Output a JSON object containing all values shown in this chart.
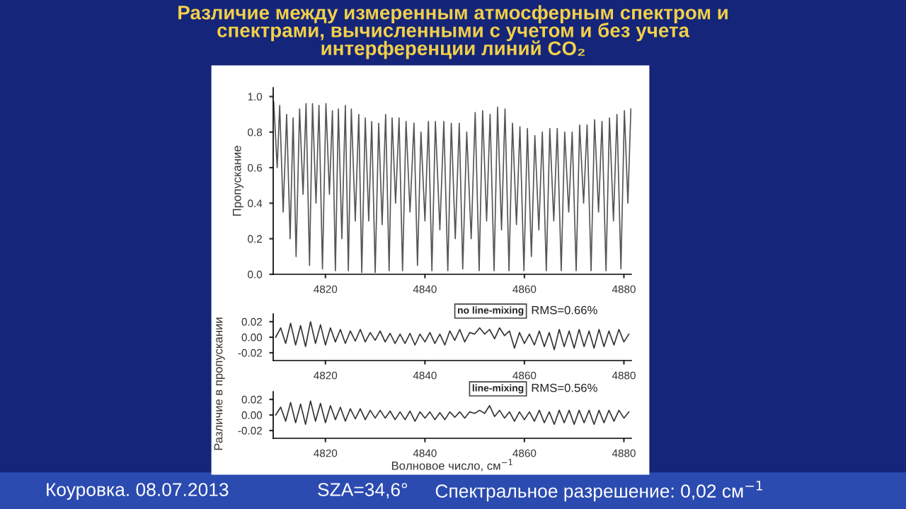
{
  "chart_data": [
    {
      "type": "line",
      "title": "Различие между измеренным атмосферным спектром и\nспектрами, вычисленными с учетом и без учета\nинтерференции линий CO₂",
      "ylabel": "Пропускание",
      "annotations": [
        "Коуровка. 08.07.2013",
        "SZA=34,6°",
        "Спектральное разрешение: 0,02 см$^{−1}$"
      ],
      "xlim": [
        4809.5,
        4881.5
      ],
      "xticks": [
        4820,
        4840,
        4860,
        4880
      ],
      "ylim": [
        0,
        1.05
      ],
      "yticks": [
        {
          "value": 0,
          "label": "0.0"
        },
        {
          "value": 0.2,
          "label": "0.2"
        },
        {
          "value": 0.4,
          "label": "0.4"
        },
        {
          "value": 0.6,
          "label": "0.6"
        },
        {
          "value": 0.8,
          "label": "0.8"
        },
        {
          "value": 1.0,
          "label": "1.0"
        }
      ],
      "grid": false,
      "marker": "none",
      "line_style": "solid",
      "series": [
        {
          "color": "#555555",
          "x": [
            4809.6,
            4810.3,
            4810.8,
            4811.5,
            4812.2,
            4812.9,
            4813.5,
            4814.1,
            4814.8,
            4815.5,
            4816.1,
            4816.8,
            4817.4,
            4818.1,
            4818.7,
            4819.4,
            4820.1,
            4820.8,
            4821.4,
            4822.0,
            4822.6,
            4823.3,
            4824.0,
            4824.6,
            4825.2,
            4826.0,
            4826.7,
            4827.3,
            4828.0,
            4828.7,
            4829.3,
            4830.0,
            4830.7,
            4831.4,
            4832.1,
            4832.8,
            4833.4,
            4834.1,
            4834.8,
            4835.5,
            4836.2,
            4837.0,
            4837.8,
            4838.5,
            4839.2,
            4840.0,
            4840.7,
            4841.4,
            4842.1,
            4843.0,
            4843.8,
            4844.6,
            4845.3,
            4846.1,
            4846.9,
            4847.6,
            4848.4,
            4849.3,
            4850.1,
            4850.9,
            4851.6,
            4852.4,
            4853.1,
            4853.9,
            4854.6,
            4855.4,
            4856.1,
            4856.9,
            4857.6,
            4858.4,
            4859.1,
            4859.9,
            4860.6,
            4861.4,
            4862.1,
            4862.9,
            4863.6,
            4864.4,
            4865.1,
            4865.9,
            4866.6,
            4867.4,
            4868.1,
            4868.9,
            4869.6,
            4870.4,
            4871.1,
            4871.9,
            4872.6,
            4873.4,
            4874.1,
            4874.9,
            4875.6,
            4876.4,
            4877.1,
            4877.9,
            4878.6,
            4879.4,
            4880.1,
            4880.8,
            4881.4
          ],
          "values": [
            0.97,
            0.6,
            0.95,
            0.35,
            0.9,
            0.2,
            0.88,
            0.1,
            0.93,
            0.45,
            0.96,
            0.05,
            0.96,
            0.4,
            0.95,
            0.03,
            0.96,
            0.45,
            0.92,
            0.02,
            0.93,
            0.2,
            0.95,
            0.02,
            0.93,
            0.3,
            0.9,
            0.01,
            0.88,
            0.3,
            0.86,
            0.01,
            0.85,
            0.28,
            0.9,
            0.02,
            0.88,
            0.4,
            0.88,
            0.02,
            0.86,
            0.35,
            0.85,
            0.05,
            0.8,
            0.3,
            0.86,
            0.02,
            0.86,
            0.25,
            0.86,
            0.02,
            0.85,
            0.2,
            0.85,
            0.03,
            0.8,
            0.2,
            0.91,
            0.02,
            0.92,
            0.3,
            0.9,
            0.02,
            0.94,
            0.25,
            0.93,
            0.02,
            0.85,
            0.28,
            0.83,
            0.02,
            0.82,
            0.1,
            0.78,
            0.25,
            0.8,
            0.02,
            0.82,
            0.3,
            0.82,
            0.02,
            0.8,
            0.35,
            0.8,
            0.02,
            0.84,
            0.4,
            0.84,
            0.02,
            0.87,
            0.35,
            0.86,
            0.02,
            0.88,
            0.3,
            0.9,
            0.03,
            0.92,
            0.4,
            0.93
          ]
        }
      ]
    },
    {
      "type": "line",
      "ylabel": "Различие в пропускании",
      "annotations": [
        "no line-mixing",
        "RMS=0.66%"
      ],
      "xlim": [
        4809.5,
        4881.5
      ],
      "xticks": [
        4820,
        4840,
        4860,
        4880
      ],
      "ylim": [
        -0.03,
        0.03
      ],
      "yticks": [
        {
          "value": 0.02,
          "label": "0.02"
        },
        {
          "value": 0,
          "label": "0.00"
        },
        {
          "value": -0.02,
          "label": "-0.02"
        }
      ],
      "grid": false,
      "marker": "none",
      "line_style": "solid",
      "series": [
        {
          "color": "#333333",
          "x": [
            4810,
            4811,
            4812,
            4813,
            4814,
            4815,
            4816,
            4817,
            4818,
            4819,
            4820,
            4821,
            4822,
            4823,
            4824,
            4825,
            4826,
            4827,
            4828,
            4829,
            4830,
            4831,
            4832,
            4833,
            4834,
            4835,
            4836,
            4837,
            4838,
            4839,
            4840,
            4841,
            4842,
            4843,
            4844,
            4845,
            4846,
            4847,
            4848,
            4849,
            4850,
            4851,
            4852,
            4853,
            4854,
            4855,
            4856,
            4857,
            4858,
            4859,
            4860,
            4861,
            4862,
            4863,
            4864,
            4865,
            4866,
            4867,
            4868,
            4869,
            4870,
            4871,
            4872,
            4873,
            4874,
            4875,
            4876,
            4877,
            4878,
            4879,
            4880,
            4881
          ],
          "values": [
            0.0,
            0.012,
            -0.008,
            0.018,
            -0.01,
            0.015,
            -0.012,
            0.02,
            -0.008,
            0.016,
            -0.01,
            0.012,
            -0.006,
            0.01,
            -0.008,
            0.008,
            -0.005,
            0.01,
            -0.006,
            0.006,
            -0.004,
            0.008,
            -0.006,
            0.005,
            -0.008,
            0.004,
            -0.008,
            0.005,
            -0.01,
            0.004,
            -0.006,
            0.006,
            -0.008,
            0.004,
            -0.01,
            0.008,
            -0.004,
            0.01,
            -0.006,
            0.006,
            0.004,
            0.012,
            0.004,
            0.01,
            -0.002,
            0.012,
            0.002,
            0.008,
            -0.014,
            0.006,
            -0.008,
            0.004,
            -0.01,
            0.008,
            -0.012,
            0.006,
            -0.016,
            0.01,
            -0.012,
            0.008,
            -0.014,
            0.01,
            -0.012,
            0.008,
            -0.014,
            0.01,
            -0.012,
            0.008,
            -0.01,
            0.01,
            -0.006,
            0.004
          ]
        }
      ]
    },
    {
      "type": "line",
      "xlabel": "Волновое число, см$^{−1}$",
      "annotations": [
        "line-mixing",
        "RMS=0.56%"
      ],
      "xlim": [
        4809.5,
        4881.5
      ],
      "xticks": [
        4820,
        4840,
        4860,
        4880
      ],
      "ylim": [
        -0.03,
        0.03
      ],
      "yticks": [
        {
          "value": 0.02,
          "label": "0.02"
        },
        {
          "value": 0,
          "label": "0.00"
        },
        {
          "value": -0.02,
          "label": "-0.02"
        }
      ],
      "grid": false,
      "marker": "none",
      "line_style": "solid",
      "series": [
        {
          "color": "#333333",
          "x": [
            4810,
            4811,
            4812,
            4813,
            4814,
            4815,
            4816,
            4817,
            4818,
            4819,
            4820,
            4821,
            4822,
            4823,
            4824,
            4825,
            4826,
            4827,
            4828,
            4829,
            4830,
            4831,
            4832,
            4833,
            4834,
            4835,
            4836,
            4837,
            4838,
            4839,
            4840,
            4841,
            4842,
            4843,
            4844,
            4845,
            4846,
            4847,
            4848,
            4849,
            4850,
            4851,
            4852,
            4853,
            4854,
            4855,
            4856,
            4857,
            4858,
            4859,
            4860,
            4861,
            4862,
            4863,
            4864,
            4865,
            4866,
            4867,
            4868,
            4869,
            4870,
            4871,
            4872,
            4873,
            4874,
            4875,
            4876,
            4877,
            4878,
            4879,
            4880,
            4881
          ],
          "values": [
            0.0,
            0.01,
            -0.008,
            0.016,
            -0.01,
            0.014,
            -0.012,
            0.018,
            -0.008,
            0.015,
            -0.01,
            0.012,
            -0.006,
            0.01,
            -0.008,
            0.008,
            -0.005,
            0.008,
            -0.006,
            0.006,
            -0.004,
            0.006,
            -0.004,
            0.005,
            -0.006,
            0.004,
            -0.006,
            0.005,
            -0.008,
            0.004,
            -0.004,
            0.004,
            -0.006,
            0.003,
            -0.006,
            0.004,
            -0.003,
            0.004,
            -0.004,
            0.004,
            0.002,
            0.006,
            0.002,
            0.012,
            -0.002,
            0.006,
            -0.004,
            0.004,
            -0.008,
            0.004,
            -0.006,
            0.004,
            -0.008,
            0.006,
            -0.01,
            0.004,
            -0.012,
            0.006,
            -0.01,
            0.006,
            -0.012,
            0.006,
            -0.01,
            0.006,
            -0.012,
            0.006,
            -0.01,
            0.006,
            -0.008,
            0.006,
            -0.004,
            0.004
          ]
        }
      ]
    }
  ]
}
